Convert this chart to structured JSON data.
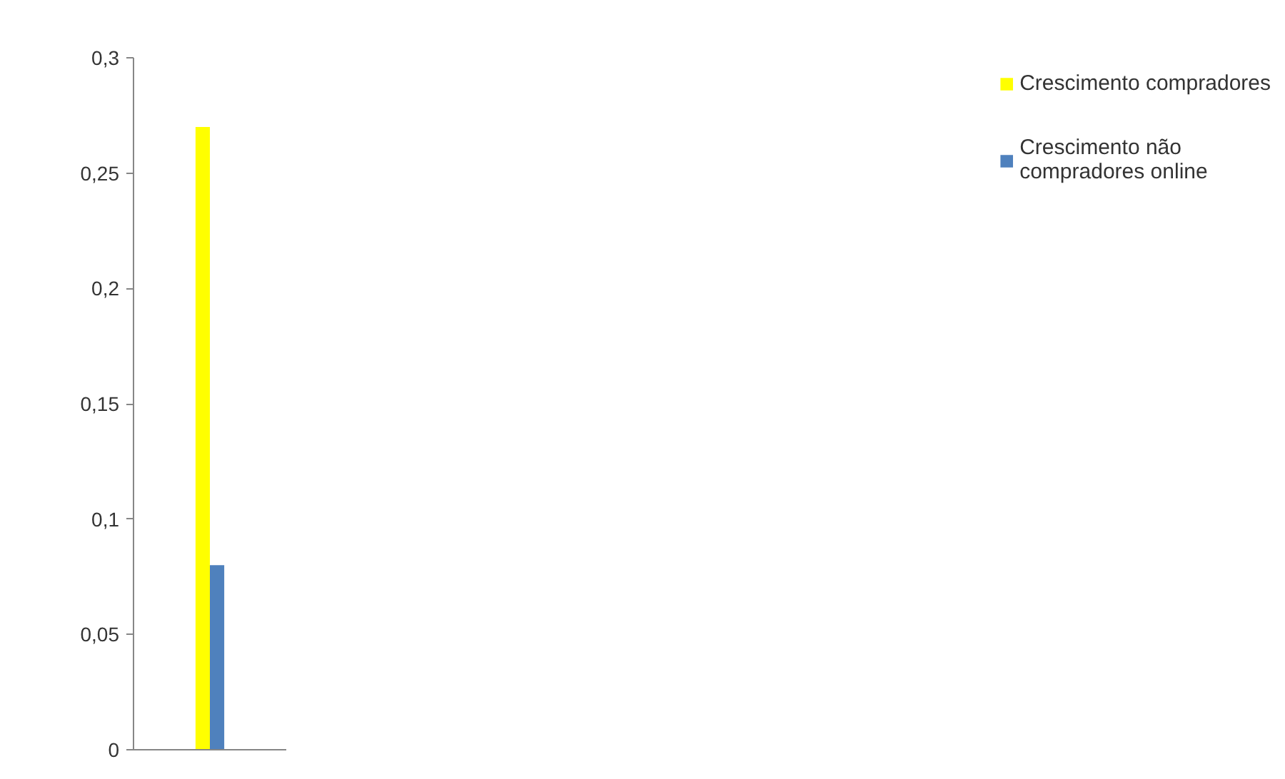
{
  "chart_data": {
    "type": "bar",
    "categories": [
      null
    ],
    "series": [
      {
        "name": "Crescimento compradores",
        "color": "#ffff00",
        "values": [
          0.27
        ]
      },
      {
        "name": "Crescimento não compradores online",
        "color": "#4f81bd",
        "values": [
          0.08
        ]
      }
    ],
    "ylim": [
      0,
      0.3
    ],
    "yticks": [
      {
        "value": 0,
        "label": "0"
      },
      {
        "value": 0.05,
        "label": "0,05"
      },
      {
        "value": 0.1,
        "label": "0,1"
      },
      {
        "value": 0.15,
        "label": "0,15"
      },
      {
        "value": 0.2,
        "label": "0,2"
      },
      {
        "value": 0.25,
        "label": "0,25"
      },
      {
        "value": 0.3,
        "label": "0,3"
      }
    ],
    "tick_labels": "y",
    "grid": false,
    "legend": "right"
  }
}
